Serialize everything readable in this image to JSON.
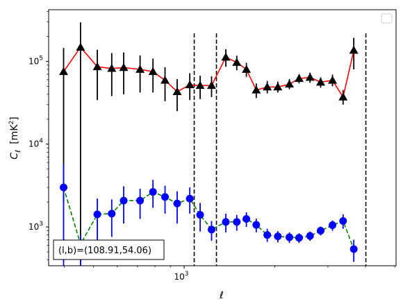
{
  "chart_data": {
    "type": "scatter",
    "title": "",
    "xlabel": "ℓ",
    "ylabel_main": "C",
    "ylabel_sub": "ℓ",
    "ylabel_unit": "[mK",
    "ylabel_unit_sup": "2",
    "ylabel_unit_close": "]",
    "x_scale": "log",
    "y_scale": "log",
    "xlim": [
      355,
      5050
    ],
    "ylim": [
      340,
      420000
    ],
    "x_tick_label": {
      "value": 1000,
      "base": "10",
      "exp": "3"
    },
    "y_tick_labels": [
      {
        "value": 1000,
        "base": "10",
        "exp": "3"
      },
      {
        "value": 10000,
        "base": "10",
        "exp": "4"
      },
      {
        "value": 100000,
        "base": "10",
        "exp": "5"
      }
    ],
    "legend": "top-right",
    "annotation": "(l,b)=(108.91,54.06)",
    "vlines": [
      1080,
      1280,
      4010
    ],
    "colors": {
      "upper_marker": "#000000",
      "upper_line": "#ff0000",
      "lower_marker": "#0000ff",
      "lower_line": "#008000"
    },
    "series": [
      {
        "marker": "triangle",
        "points": [
          {
            "x": 398,
            "y": 75000,
            "lo": 2000,
            "hi": 145000
          },
          {
            "x": 453,
            "y": 148000,
            "lo": 340,
            "hi": 295000
          },
          {
            "x": 515,
            "y": 86000,
            "lo": 34000,
            "hi": 138000
          },
          {
            "x": 575,
            "y": 82000,
            "lo": 38000,
            "hi": 126000
          },
          {
            "x": 630,
            "y": 84000,
            "lo": 40000,
            "hi": 128000
          },
          {
            "x": 714,
            "y": 80000,
            "lo": 42000,
            "hi": 118000
          },
          {
            "x": 788,
            "y": 75000,
            "lo": 42000,
            "hi": 108000
          },
          {
            "x": 864,
            "y": 59000,
            "lo": 33000,
            "hi": 85000
          },
          {
            "x": 948,
            "y": 43000,
            "lo": 25000,
            "hi": 61000
          },
          {
            "x": 1044,
            "y": 52000,
            "lo": 34000,
            "hi": 72000
          },
          {
            "x": 1130,
            "y": 51000,
            "lo": 35000,
            "hi": 67000
          },
          {
            "x": 1233,
            "y": 51000,
            "lo": 37000,
            "hi": 66000
          },
          {
            "x": 1375,
            "y": 112000,
            "lo": 86000,
            "hi": 140000
          },
          {
            "x": 1495,
            "y": 97000,
            "lo": 78000,
            "hi": 117000
          },
          {
            "x": 1609,
            "y": 80000,
            "lo": 65000,
            "hi": 96000
          },
          {
            "x": 1735,
            "y": 45000,
            "lo": 36000,
            "hi": 54000
          },
          {
            "x": 1887,
            "y": 49000,
            "lo": 41000,
            "hi": 58000
          },
          {
            "x": 2046,
            "y": 49000,
            "lo": 42000,
            "hi": 57000
          },
          {
            "x": 2235,
            "y": 53000,
            "lo": 46000,
            "hi": 61000
          },
          {
            "x": 2407,
            "y": 62000,
            "lo": 54000,
            "hi": 70000
          },
          {
            "x": 2617,
            "y": 64000,
            "lo": 55000,
            "hi": 73000
          },
          {
            "x": 2838,
            "y": 56000,
            "lo": 48000,
            "hi": 64000
          },
          {
            "x": 3107,
            "y": 59000,
            "lo": 50000,
            "hi": 69000
          },
          {
            "x": 3369,
            "y": 37000,
            "lo": 30000,
            "hi": 45000
          },
          {
            "x": 3656,
            "y": 136000,
            "lo": 80000,
            "hi": 192000
          }
        ]
      },
      {
        "marker": "circle",
        "points": [
          {
            "x": 398,
            "y": 3000,
            "lo": 340,
            "hi": 5800
          },
          {
            "x": 453,
            "y": 620,
            "lo": 340,
            "hi": 800
          },
          {
            "x": 515,
            "y": 1420,
            "lo": 600,
            "hi": 2200
          },
          {
            "x": 575,
            "y": 1450,
            "lo": 760,
            "hi": 2150
          },
          {
            "x": 630,
            "y": 2080,
            "lo": 1100,
            "hi": 3100
          },
          {
            "x": 714,
            "y": 2080,
            "lo": 1250,
            "hi": 2900
          },
          {
            "x": 788,
            "y": 2650,
            "lo": 1700,
            "hi": 3700
          },
          {
            "x": 864,
            "y": 2300,
            "lo": 1450,
            "hi": 3150
          },
          {
            "x": 948,
            "y": 1920,
            "lo": 1100,
            "hi": 2700
          },
          {
            "x": 1044,
            "y": 2200,
            "lo": 1450,
            "hi": 3000
          },
          {
            "x": 1130,
            "y": 1400,
            "lo": 880,
            "hi": 1950
          },
          {
            "x": 1233,
            "y": 930,
            "lo": 680,
            "hi": 1180
          },
          {
            "x": 1375,
            "y": 1150,
            "lo": 860,
            "hi": 1450
          },
          {
            "x": 1495,
            "y": 1150,
            "lo": 900,
            "hi": 1400
          },
          {
            "x": 1609,
            "y": 1250,
            "lo": 1000,
            "hi": 1500
          },
          {
            "x": 1735,
            "y": 1060,
            "lo": 860,
            "hi": 1260
          },
          {
            "x": 1887,
            "y": 800,
            "lo": 660,
            "hi": 950
          },
          {
            "x": 2046,
            "y": 770,
            "lo": 650,
            "hi": 890
          },
          {
            "x": 2235,
            "y": 750,
            "lo": 640,
            "hi": 860
          },
          {
            "x": 2407,
            "y": 740,
            "lo": 640,
            "hi": 840
          },
          {
            "x": 2617,
            "y": 780,
            "lo": 680,
            "hi": 880
          },
          {
            "x": 2838,
            "y": 900,
            "lo": 790,
            "hi": 1010
          },
          {
            "x": 3107,
            "y": 1050,
            "lo": 900,
            "hi": 1200
          },
          {
            "x": 3369,
            "y": 1180,
            "lo": 950,
            "hi": 1420
          },
          {
            "x": 3656,
            "y": 540,
            "lo": 380,
            "hi": 700
          }
        ]
      }
    ]
  }
}
